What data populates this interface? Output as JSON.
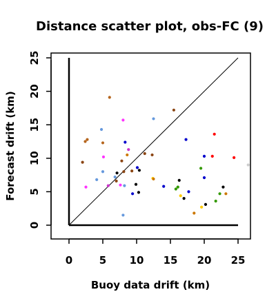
{
  "chart_data": {
    "type": "scatter",
    "title": "Distance scatter plot, obs-FC (9)",
    "xlabel": "Buoy data drift (km)",
    "ylabel": "Forecast drift (km)",
    "xlim": [
      -3,
      26.5
    ],
    "ylim": [
      -2,
      26.5
    ],
    "xticks": [
      "0",
      "5",
      "10",
      "15",
      "20",
      "25"
    ],
    "yticks": [
      "0",
      "5",
      "10",
      "15",
      "20",
      "25"
    ],
    "xtick_values": [
      0,
      5,
      10,
      15,
      20,
      25
    ],
    "ytick_values": [
      0,
      5,
      10,
      15,
      20,
      25
    ],
    "reference_line": [
      [
        0,
        0
      ],
      [
        25,
        25
      ]
    ],
    "inner_axes_extent": 25,
    "grid": false,
    "legend": "none",
    "points": [
      {
        "x": 6.0,
        "y": 19.1,
        "color": "#b5651d"
      },
      {
        "x": 15.5,
        "y": 17.2,
        "color": "#8b4513"
      },
      {
        "x": 8.0,
        "y": 15.7,
        "color": "#ff33ff"
      },
      {
        "x": 12.5,
        "y": 15.9,
        "color": "#6699dd"
      },
      {
        "x": 4.8,
        "y": 14.3,
        "color": "#6699dd"
      },
      {
        "x": 2.4,
        "y": 12.5,
        "color": "#b5651d"
      },
      {
        "x": 2.7,
        "y": 12.8,
        "color": "#b5651d"
      },
      {
        "x": 5.0,
        "y": 12.3,
        "color": "#b5651d"
      },
      {
        "x": 8.3,
        "y": 12.4,
        "color": "#0000cc"
      },
      {
        "x": 17.3,
        "y": 12.8,
        "color": "#0000cc"
      },
      {
        "x": 21.5,
        "y": 13.6,
        "color": "#ff0000"
      },
      {
        "x": 8.8,
        "y": 11.3,
        "color": "#cc33cc"
      },
      {
        "x": 11.2,
        "y": 10.7,
        "color": "#8b4513"
      },
      {
        "x": 12.3,
        "y": 10.5,
        "color": "#8b4513"
      },
      {
        "x": 5.1,
        "y": 10.2,
        "color": "#ff33ff"
      },
      {
        "x": 8.6,
        "y": 10.5,
        "color": "#cc7700"
      },
      {
        "x": 2.0,
        "y": 9.4,
        "color": "#8b4513"
      },
      {
        "x": 7.8,
        "y": 9.6,
        "color": "#8b4513"
      },
      {
        "x": 20.0,
        "y": 10.3,
        "color": "#0000cc"
      },
      {
        "x": 21.2,
        "y": 10.3,
        "color": "#ff0000"
      },
      {
        "x": 24.4,
        "y": 10.1,
        "color": "#ff0000"
      },
      {
        "x": 26.5,
        "y": 9.0,
        "color": "#cccccc"
      },
      {
        "x": 10.1,
        "y": 8.6,
        "color": "#0000cc"
      },
      {
        "x": 10.4,
        "y": 8.2,
        "color": "#000000"
      },
      {
        "x": 8.1,
        "y": 8.0,
        "color": "#8b4513"
      },
      {
        "x": 9.3,
        "y": 8.1,
        "color": "#8b4513"
      },
      {
        "x": 7.1,
        "y": 7.8,
        "color": "#000000"
      },
      {
        "x": 5.0,
        "y": 8.0,
        "color": "#6699dd"
      },
      {
        "x": 19.5,
        "y": 8.5,
        "color": "#339900"
      },
      {
        "x": 6.8,
        "y": 7.2,
        "color": "#6699dd"
      },
      {
        "x": 4.1,
        "y": 6.8,
        "color": "#6699dd"
      },
      {
        "x": 20.0,
        "y": 7.1,
        "color": "#0000cc"
      },
      {
        "x": 7.0,
        "y": 6.6,
        "color": "#8b4513"
      },
      {
        "x": 16.3,
        "y": 6.7,
        "color": "#000000"
      },
      {
        "x": 12.4,
        "y": 7.0,
        "color": "#ffcc00"
      },
      {
        "x": 12.5,
        "y": 6.9,
        "color": "#cc7700"
      },
      {
        "x": 2.5,
        "y": 5.7,
        "color": "#ff33ff"
      },
      {
        "x": 5.8,
        "y": 5.9,
        "color": "#cc33cc"
      },
      {
        "x": 7.6,
        "y": 6.0,
        "color": "#ff33ff"
      },
      {
        "x": 8.2,
        "y": 5.9,
        "color": "#6699dd"
      },
      {
        "x": 9.9,
        "y": 6.1,
        "color": "#000000"
      },
      {
        "x": 14.0,
        "y": 5.8,
        "color": "#0000cc"
      },
      {
        "x": 16.1,
        "y": 5.7,
        "color": "#339900"
      },
      {
        "x": 15.8,
        "y": 5.4,
        "color": "#339900"
      },
      {
        "x": 17.7,
        "y": 5.0,
        "color": "#0000cc"
      },
      {
        "x": 22.8,
        "y": 5.7,
        "color": "#000000"
      },
      {
        "x": 9.4,
        "y": 4.7,
        "color": "#0000cc"
      },
      {
        "x": 10.3,
        "y": 4.9,
        "color": "#000000"
      },
      {
        "x": 16.5,
        "y": 4.4,
        "color": "#ffcc00"
      },
      {
        "x": 17.0,
        "y": 4.0,
        "color": "#000000"
      },
      {
        "x": 22.3,
        "y": 4.7,
        "color": "#339900"
      },
      {
        "x": 23.2,
        "y": 4.7,
        "color": "#cc7700"
      },
      {
        "x": 21.7,
        "y": 3.6,
        "color": "#339900"
      },
      {
        "x": 19.6,
        "y": 2.7,
        "color": "#ffcc00"
      },
      {
        "x": 20.2,
        "y": 3.1,
        "color": "#000000"
      },
      {
        "x": 18.5,
        "y": 1.8,
        "color": "#cc7700"
      },
      {
        "x": 8.0,
        "y": 1.5,
        "color": "#6699dd"
      }
    ]
  }
}
